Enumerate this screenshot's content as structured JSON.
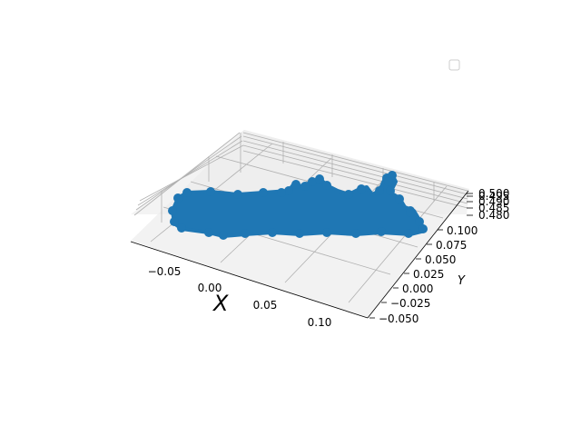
{
  "chart_data": {
    "type": "scatter",
    "projection": "3d",
    "title": "",
    "xlabel": "X",
    "ylabel": "Y",
    "zlabel": "",
    "x_ticks": [
      "−0.05",
      "0.00",
      "0.05",
      "0.10"
    ],
    "y_ticks": [
      "−0.050",
      "−0.025",
      "0.000",
      "0.025",
      "0.050",
      "0.075",
      "0.100"
    ],
    "z_ticks": [
      "0.480",
      "0.485",
      "0.490",
      "0.495",
      "0.500"
    ],
    "xlim": [
      -0.08,
      0.12
    ],
    "ylim": [
      -0.06,
      0.11
    ],
    "zlim": [
      0.478,
      0.502
    ],
    "grid": true,
    "legend": {
      "location": "top-right",
      "entries": []
    },
    "series": [
      {
        "color": "#1f77b4",
        "note_shape": "dense point cloud forming an elongated band",
        "values": [
          {
            "x": -0.07,
            "y": 0.06,
            "z": 0.49
          },
          {
            "x": -0.06,
            "y": 0.05,
            "z": 0.49
          },
          {
            "x": -0.04,
            "y": 0.04,
            "z": 0.49
          },
          {
            "x": -0.02,
            "y": 0.03,
            "z": 0.49
          },
          {
            "x": 0.0,
            "y": 0.03,
            "z": 0.49
          },
          {
            "x": 0.02,
            "y": 0.03,
            "z": 0.49
          },
          {
            "x": 0.04,
            "y": 0.04,
            "z": 0.49
          },
          {
            "x": 0.06,
            "y": 0.05,
            "z": 0.49
          },
          {
            "x": 0.08,
            "y": 0.06,
            "z": 0.49
          },
          {
            "x": 0.1,
            "y": 0.07,
            "z": 0.49
          }
        ]
      }
    ]
  }
}
